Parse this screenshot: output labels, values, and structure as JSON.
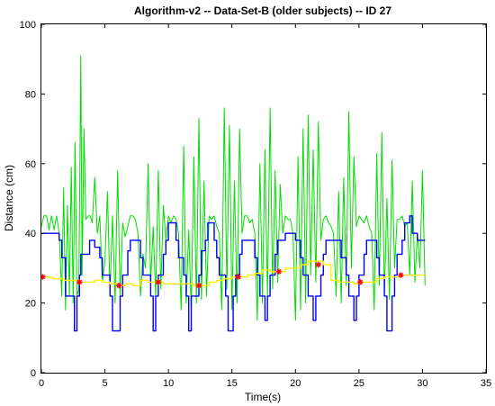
{
  "chart_data": {
    "type": "line",
    "title": "Algorithm-v2 -- Data-Set-B (older subjects) -- ID 27",
    "xlabel": "Time(s)",
    "ylabel": "Distance (cm)",
    "xlim": [
      0,
      35
    ],
    "ylim": [
      0,
      100
    ],
    "xticks": [
      0,
      5,
      10,
      15,
      20,
      25,
      30,
      35
    ],
    "yticks": [
      0,
      20,
      40,
      60,
      80,
      100
    ],
    "grid": false,
    "legend": "none",
    "series": [
      {
        "style": "line",
        "color": "#00dd00",
        "x": [
          0.0,
          0.2,
          0.4,
          0.6,
          0.8,
          1.0,
          1.2,
          1.4,
          1.6,
          1.75,
          1.9,
          2.05,
          2.2,
          2.35,
          2.5,
          2.65,
          2.8,
          2.95,
          3.1,
          3.2,
          3.35,
          3.5,
          3.7,
          3.85,
          4.0,
          4.2,
          4.4,
          4.6,
          4.8,
          5.0,
          5.2,
          5.4,
          5.6,
          5.8,
          6.0,
          6.2,
          6.4,
          6.6,
          6.8,
          7.0,
          7.2,
          7.4,
          7.6,
          7.8,
          8.0,
          8.2,
          8.4,
          8.6,
          8.8,
          9.0,
          9.2,
          9.4,
          9.6,
          9.8,
          10.0,
          10.2,
          10.4,
          10.6,
          10.8,
          11.0,
          11.2,
          11.4,
          11.6,
          11.8,
          12.0,
          12.2,
          12.4,
          12.6,
          12.8,
          13.0,
          13.2,
          13.4,
          13.6,
          13.8,
          14.0,
          14.2,
          14.4,
          14.6,
          14.8,
          15.0,
          15.2,
          15.4,
          15.6,
          15.8,
          16.0,
          16.2,
          16.4,
          16.6,
          16.8,
          17.0,
          17.2,
          17.4,
          17.6,
          17.8,
          18.0,
          18.2,
          18.4,
          18.6,
          18.8,
          19.0,
          19.2,
          19.4,
          19.6,
          19.8,
          20.0,
          20.2,
          20.4,
          20.6,
          20.8,
          21.0,
          21.2,
          21.4,
          21.6,
          21.8,
          22.0,
          22.2,
          22.4,
          22.6,
          22.8,
          23.0,
          23.2,
          23.4,
          23.6,
          23.8,
          24.0,
          24.2,
          24.4,
          24.6,
          24.8,
          25.0,
          25.2,
          25.4,
          25.6,
          25.8,
          26.0,
          26.2,
          26.4,
          26.6,
          26.8,
          27.0,
          27.2,
          27.4,
          27.6,
          27.8,
          28.0,
          28.2,
          28.4,
          28.6,
          28.8,
          29.0,
          29.2,
          29.4,
          29.6,
          29.8,
          30.0,
          30.2
        ],
        "y": [
          42,
          45,
          45,
          41,
          45,
          41,
          45,
          40,
          22,
          53,
          18,
          48,
          22,
          59,
          20,
          66,
          22,
          24,
          91,
          28,
          70,
          44,
          45,
          45,
          43,
          56,
          40,
          45,
          26,
          32,
          52,
          23,
          45,
          20,
          58,
          22,
          43,
          39,
          42,
          45,
          45,
          44,
          40,
          22,
          34,
          30,
          60,
          26,
          42,
          22,
          58,
          24,
          48,
          38,
          45,
          43,
          45,
          44,
          40,
          18,
          65,
          20,
          41,
          18,
          62,
          20,
          73,
          21,
          55,
          22,
          45,
          44,
          45,
          42,
          40,
          18,
          76,
          24,
          71,
          18,
          55,
          20,
          70,
          40,
          45,
          45,
          43,
          44,
          40,
          15,
          60,
          20,
          64,
          22,
          76,
          24,
          58,
          26,
          54,
          40,
          45,
          44,
          44,
          40,
          15,
          62,
          18,
          70,
          20,
          74,
          28,
          64,
          26,
          72,
          38,
          44,
          45,
          43,
          42,
          40,
          22,
          52,
          20,
          56,
          25,
          75,
          30,
          62,
          42,
          45,
          44,
          43,
          45,
          42,
          40,
          18,
          63,
          25,
          69,
          22,
          50,
          21,
          61,
          30,
          44,
          44,
          45,
          42,
          43,
          28,
          55,
          26,
          40,
          30,
          58,
          25
        ]
      },
      {
        "style": "step",
        "color": "#0000ff",
        "x": [
          0.0,
          1.4,
          1.6,
          1.9,
          2.6,
          2.8,
          3.0,
          3.1,
          3.8,
          4.0,
          4.2,
          4.6,
          4.8,
          5.4,
          5.6,
          6.2,
          6.4,
          6.8,
          7.0,
          7.2,
          7.4,
          7.8,
          8.0,
          8.6,
          8.8,
          9.0,
          9.2,
          9.6,
          9.8,
          10.0,
          10.3,
          10.6,
          10.8,
          11.2,
          11.4,
          11.6,
          11.8,
          12.4,
          12.6,
          12.9,
          13.1,
          13.3,
          13.6,
          13.8,
          14.0,
          14.5,
          14.7,
          15.1,
          15.3,
          15.6,
          15.8,
          16.0,
          16.2,
          16.8,
          17.0,
          17.2,
          17.6,
          17.8,
          18.0,
          18.4,
          18.6,
          19.2,
          19.4,
          19.8,
          20.0,
          20.4,
          20.6,
          21.0,
          21.4,
          21.6,
          22.0,
          22.2,
          22.4,
          22.8,
          23.0,
          23.4,
          23.6,
          24.0,
          24.2,
          24.6,
          24.8,
          25.0,
          25.4,
          25.6,
          26.0,
          26.2,
          26.4,
          26.6,
          27.0,
          27.2,
          27.6,
          27.8,
          28.0,
          28.4,
          28.6,
          29.0,
          29.2,
          29.6,
          30.2
        ],
        "y": [
          40,
          38,
          33,
          22,
          12,
          22,
          28,
          34,
          38,
          38,
          36,
          33,
          28,
          22,
          12,
          22,
          28,
          35,
          38,
          38,
          38,
          33,
          28,
          22,
          12,
          22,
          28,
          34,
          38,
          43,
          43,
          38,
          33,
          28,
          22,
          12,
          22,
          28,
          35,
          38,
          43,
          43,
          38,
          33,
          28,
          22,
          12,
          22,
          28,
          34,
          38,
          38,
          38,
          33,
          28,
          22,
          15,
          22,
          28,
          34,
          38,
          40,
          40,
          40,
          38,
          33,
          28,
          22,
          15,
          22,
          28,
          34,
          38,
          38,
          38,
          38,
          33,
          28,
          22,
          15,
          22,
          28,
          34,
          38,
          38,
          38,
          33,
          28,
          22,
          12,
          22,
          28,
          34,
          38,
          43,
          45,
          40,
          38,
          38
        ]
      },
      {
        "style": "step",
        "color": "#ffee00",
        "x": [
          0.0,
          0.4,
          0.8,
          1.3,
          1.8,
          2.4,
          3.0,
          3.6,
          4.2,
          4.8,
          5.4,
          6.0,
          6.6,
          7.2,
          7.8,
          8.4,
          9.0,
          9.6,
          10.2,
          10.8,
          11.4,
          12.0,
          12.6,
          13.2,
          13.8,
          14.4,
          15.0,
          15.6,
          16.2,
          16.8,
          17.4,
          18.0,
          18.6,
          19.2,
          19.8,
          20.4,
          21.0,
          21.6,
          22.2,
          22.8,
          23.4,
          24.0,
          24.6,
          25.2,
          25.8,
          26.4,
          27.0,
          27.6,
          28.2,
          28.8,
          29.4,
          30.2
        ],
        "y": [
          27.5,
          27.5,
          27.0,
          27.0,
          26.5,
          26.5,
          26.0,
          26.0,
          26.5,
          26.0,
          25.5,
          25.0,
          25.5,
          25.0,
          26.5,
          26.0,
          26.0,
          25.5,
          25.5,
          25.5,
          25.5,
          25.0,
          25.0,
          26.0,
          26.5,
          27.0,
          27.5,
          27.5,
          28.0,
          28.5,
          29.5,
          29.0,
          29.0,
          30.0,
          30.0,
          31.0,
          32.0,
          32.0,
          31.0,
          26.5,
          26.0,
          26.0,
          25.5,
          26.0,
          26.0,
          27.0,
          27.5,
          27.5,
          28.0,
          28.0,
          28.0,
          28.0
        ]
      },
      {
        "style": "markers",
        "marker": "asterisk",
        "color": "#ff0000",
        "x": [
          0.1,
          3.0,
          6.1,
          9.2,
          12.4,
          15.5,
          18.7,
          21.8,
          25.1,
          28.3
        ],
        "y": [
          27.5,
          26.0,
          25.0,
          26.0,
          25.0,
          27.5,
          29.0,
          31.0,
          26.0,
          28.0
        ]
      }
    ]
  }
}
